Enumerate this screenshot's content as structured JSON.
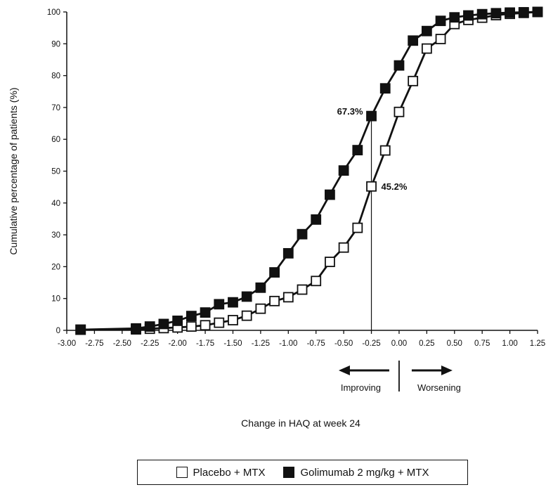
{
  "chart_data": {
    "type": "line",
    "xlabel": "Change in HAQ at week 24",
    "ylabel": "Cumulative percentage of patients (%)",
    "xlim": [
      -3.0,
      1.25
    ],
    "ylim": [
      0,
      100
    ],
    "x_ticks": [
      "-3.00",
      "-2.75",
      "-2.50",
      "-2.25",
      "-2.00",
      "-1.75",
      "-1.50",
      "-1.25",
      "-1.00",
      "-0.75",
      "-0.50",
      "-0.25",
      "0.00",
      "0.25",
      "0.50",
      "0.75",
      "1.00",
      "1.25"
    ],
    "y_ticks": [
      "0",
      "10",
      "20",
      "30",
      "40",
      "50",
      "60",
      "70",
      "80",
      "90",
      "100"
    ],
    "grid": false,
    "series": [
      {
        "name": "Placebo + MTX",
        "marker": "open-square",
        "x": [
          -2.875,
          -2.375,
          -2.25,
          -2.125,
          -2.0,
          -1.875,
          -1.75,
          -1.625,
          -1.5,
          -1.375,
          -1.25,
          -1.125,
          -1.0,
          -0.875,
          -0.75,
          -0.625,
          -0.5,
          -0.375,
          -0.25,
          -0.125,
          0.0,
          0.125,
          0.25,
          0.375,
          0.5,
          0.625,
          0.75,
          0.875,
          1.0,
          1.125,
          1.25
        ],
        "values": [
          0.2,
          0.3,
          0.5,
          0.7,
          0.9,
          1.2,
          1.6,
          2.4,
          3.2,
          4.6,
          6.8,
          9.2,
          10.4,
          12.8,
          15.5,
          21.5,
          26.0,
          32.2,
          45.2,
          56.5,
          68.6,
          78.3,
          88.5,
          91.5,
          96.2,
          97.5,
          98.2,
          99.0,
          99.4,
          99.7,
          100.0
        ]
      },
      {
        "name": "Golimumab 2 mg/kg + MTX",
        "marker": "filled-square",
        "x": [
          -2.875,
          -2.375,
          -2.25,
          -2.125,
          -2.0,
          -1.875,
          -1.75,
          -1.625,
          -1.5,
          -1.375,
          -1.25,
          -1.125,
          -1.0,
          -0.875,
          -0.75,
          -0.625,
          -0.5,
          -0.375,
          -0.25,
          -0.125,
          0.0,
          0.125,
          0.25,
          0.375,
          0.5,
          0.625,
          0.75,
          0.875,
          1.0,
          1.125,
          1.25
        ],
        "values": [
          0.2,
          0.6,
          1.2,
          2.0,
          3.0,
          4.5,
          5.6,
          8.2,
          8.8,
          10.6,
          13.4,
          18.2,
          24.2,
          30.2,
          34.8,
          42.6,
          50.2,
          56.6,
          67.3,
          76.0,
          83.2,
          91.0,
          94.0,
          97.2,
          98.3,
          98.9,
          99.3,
          99.6,
          99.8,
          99.9,
          100.0
        ]
      }
    ],
    "reference_line_x": -0.25,
    "annotations": [
      {
        "text": "67.3%",
        "x": -0.25,
        "y": 67.3,
        "side": "left"
      },
      {
        "text": "45.2%",
        "x": -0.25,
        "y": 45.2,
        "side": "right"
      }
    ],
    "direction": {
      "left": "Improving",
      "right": "Worsening"
    },
    "legend": {
      "placement": "bottom-center"
    }
  }
}
